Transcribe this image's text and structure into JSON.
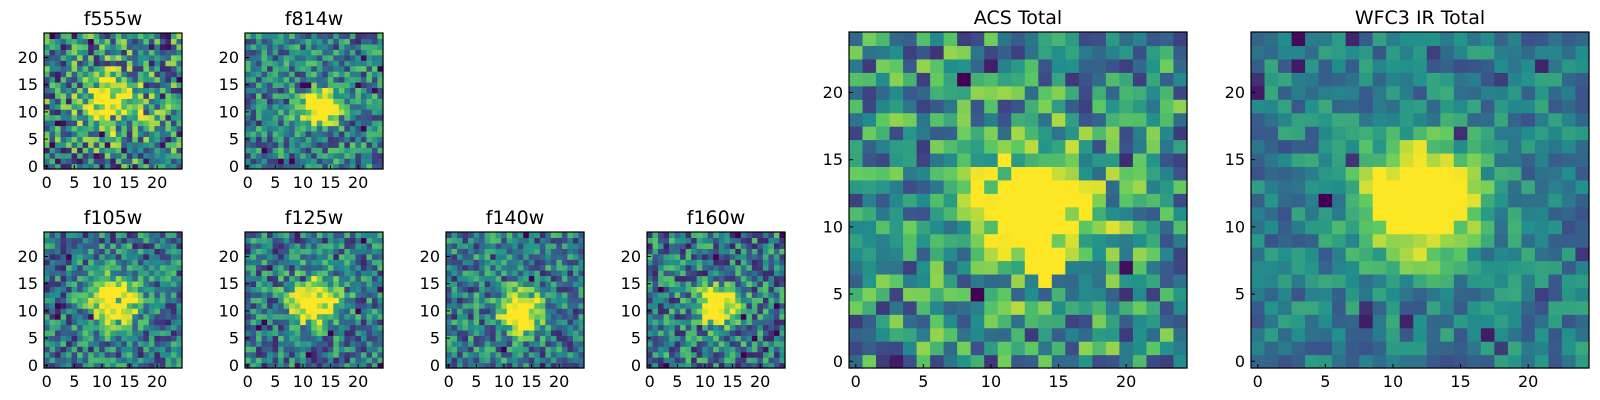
{
  "figure": {
    "description_text": "",
    "colormap": [
      "#440154",
      "#3b528b",
      "#21918c",
      "#5ec962",
      "#fde725"
    ]
  },
  "chart_data": [
    {
      "id": "f555w",
      "type": "heatmap",
      "title": "f555w",
      "shape": [
        25,
        25
      ],
      "xlim": [
        0,
        25
      ],
      "ylim": [
        0,
        25
      ],
      "xticks": [
        0,
        5,
        10,
        15,
        20
      ],
      "yticks": [
        0,
        5,
        10,
        15,
        20
      ],
      "center": [
        12,
        12
      ],
      "peak": 0.6,
      "sigma": 3.5,
      "base": 0.45,
      "noise": 0.42,
      "seed": 11
    },
    {
      "id": "f814w",
      "type": "heatmap",
      "title": "f814w",
      "shape": [
        25,
        25
      ],
      "xlim": [
        0,
        25
      ],
      "ylim": [
        0,
        25
      ],
      "xticks": [
        0,
        5,
        10,
        15,
        20
      ],
      "yticks": [
        0,
        5,
        10,
        15,
        20
      ],
      "center": [
        13,
        11
      ],
      "peak": 0.95,
      "sigma": 2.2,
      "base": 0.45,
      "noise": 0.3,
      "seed": 23
    },
    {
      "id": "f105w",
      "type": "heatmap",
      "title": "f105w",
      "shape": [
        25,
        25
      ],
      "xlim": [
        0,
        25
      ],
      "ylim": [
        0,
        25
      ],
      "xticks": [
        0,
        5,
        10,
        15,
        20
      ],
      "yticks": [
        0,
        5,
        10,
        15,
        20
      ],
      "center": [
        12,
        12
      ],
      "peak": 0.9,
      "sigma": 3.0,
      "base": 0.4,
      "noise": 0.3,
      "seed": 37
    },
    {
      "id": "f125w",
      "type": "heatmap",
      "title": "f125w",
      "shape": [
        25,
        25
      ],
      "xlim": [
        0,
        25
      ],
      "ylim": [
        0,
        25
      ],
      "xticks": [
        0,
        5,
        10,
        15,
        20
      ],
      "yticks": [
        0,
        5,
        10,
        15,
        20
      ],
      "center": [
        12,
        12
      ],
      "peak": 0.85,
      "sigma": 3.0,
      "base": 0.4,
      "noise": 0.3,
      "seed": 41
    },
    {
      "id": "f140w",
      "type": "heatmap",
      "title": "f140w",
      "shape": [
        25,
        25
      ],
      "xlim": [
        0,
        25
      ],
      "ylim": [
        0,
        25
      ],
      "xticks": [
        0,
        5,
        10,
        15,
        20
      ],
      "yticks": [
        0,
        5,
        10,
        15,
        20
      ],
      "center": [
        13,
        10
      ],
      "peak": 0.95,
      "sigma": 2.5,
      "base": 0.42,
      "noise": 0.3,
      "seed": 53
    },
    {
      "id": "f160w",
      "type": "heatmap",
      "title": "f160w",
      "shape": [
        25,
        25
      ],
      "xlim": [
        0,
        25
      ],
      "ylim": [
        0,
        25
      ],
      "xticks": [
        0,
        5,
        10,
        15,
        20
      ],
      "yticks": [
        0,
        5,
        10,
        15,
        20
      ],
      "center": [
        12,
        11
      ],
      "peak": 0.9,
      "sigma": 2.4,
      "base": 0.42,
      "noise": 0.32,
      "seed": 67
    },
    {
      "id": "acs-total",
      "type": "heatmap",
      "title": "ACS Total",
      "shape": [
        25,
        25
      ],
      "xlim": [
        0,
        25
      ],
      "ylim": [
        0,
        25
      ],
      "xticks": [
        0,
        5,
        10,
        15,
        20
      ],
      "yticks": [
        0,
        5,
        10,
        15,
        20
      ],
      "center": [
        13,
        11
      ],
      "peak": 0.9,
      "sigma": 3.0,
      "base": 0.5,
      "noise": 0.34,
      "seed": 79
    },
    {
      "id": "wfc3-ir-total",
      "type": "heatmap",
      "title": "WFC3 IR Total",
      "shape": [
        25,
        25
      ],
      "xlim": [
        0,
        25
      ],
      "ylim": [
        0,
        25
      ],
      "xticks": [
        0,
        5,
        10,
        15,
        20
      ],
      "yticks": [
        0,
        5,
        10,
        15,
        20
      ],
      "center": [
        12,
        12
      ],
      "peak": 0.95,
      "sigma": 3.0,
      "base": 0.42,
      "noise": 0.18,
      "seed": 97
    }
  ]
}
